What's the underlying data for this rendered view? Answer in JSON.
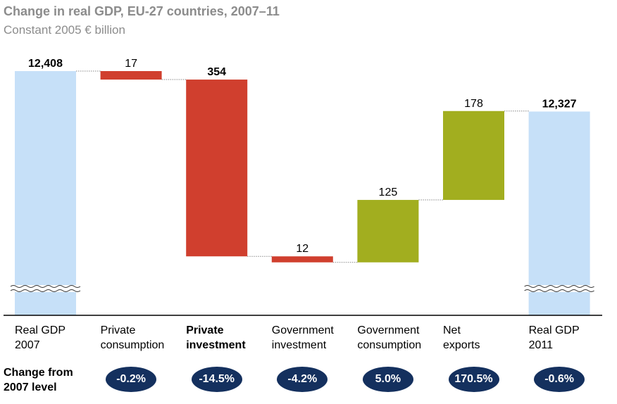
{
  "title": "Change in real GDP, EU-27 countries, 2007–11",
  "subtitle": "Constant 2005 € billion",
  "chart_data": {
    "type": "bar",
    "subtype": "waterfall",
    "unit": "Constant 2005 € billion",
    "axis_break": true,
    "categories": [
      {
        "label": [
          "Real GDP",
          "2007"
        ],
        "bold": false
      },
      {
        "label": [
          "Private",
          "consumption"
        ],
        "bold": false
      },
      {
        "label": [
          "Private",
          "investment"
        ],
        "bold": true
      },
      {
        "label": [
          "Government",
          "investment"
        ],
        "bold": false
      },
      {
        "label": [
          "Government",
          "consumption"
        ],
        "bold": false
      },
      {
        "label": [
          "Net",
          "exports"
        ],
        "bold": false
      },
      {
        "label": [
          "Real GDP",
          "2011"
        ],
        "bold": false
      }
    ],
    "bars": [
      {
        "kind": "total",
        "value": 12408,
        "label": "12,408",
        "bold_label": true
      },
      {
        "kind": "decrease",
        "value": 17,
        "label": "17",
        "bold_label": false
      },
      {
        "kind": "decrease",
        "value": 354,
        "label": "354",
        "bold_label": true
      },
      {
        "kind": "decrease",
        "value": 12,
        "label": "12",
        "bold_label": false
      },
      {
        "kind": "increase",
        "value": 125,
        "label": "125",
        "bold_label": false
      },
      {
        "kind": "increase",
        "value": 178,
        "label": "178",
        "bold_label": false
      },
      {
        "kind": "total",
        "value": 12327,
        "label": "12,327",
        "bold_label": true
      }
    ],
    "change_label": [
      "Change from",
      "2007 level"
    ],
    "changes": [
      "-0.2%",
      "-14.5%",
      "-4.2%",
      "5.0%",
      "170.5%",
      "-0.6%"
    ],
    "colors": {
      "total": "#c6e0f8",
      "decrease": "#d03f2e",
      "increase": "#a2ae1f",
      "badge": "#14305e",
      "title": "#8c8c8c"
    }
  }
}
